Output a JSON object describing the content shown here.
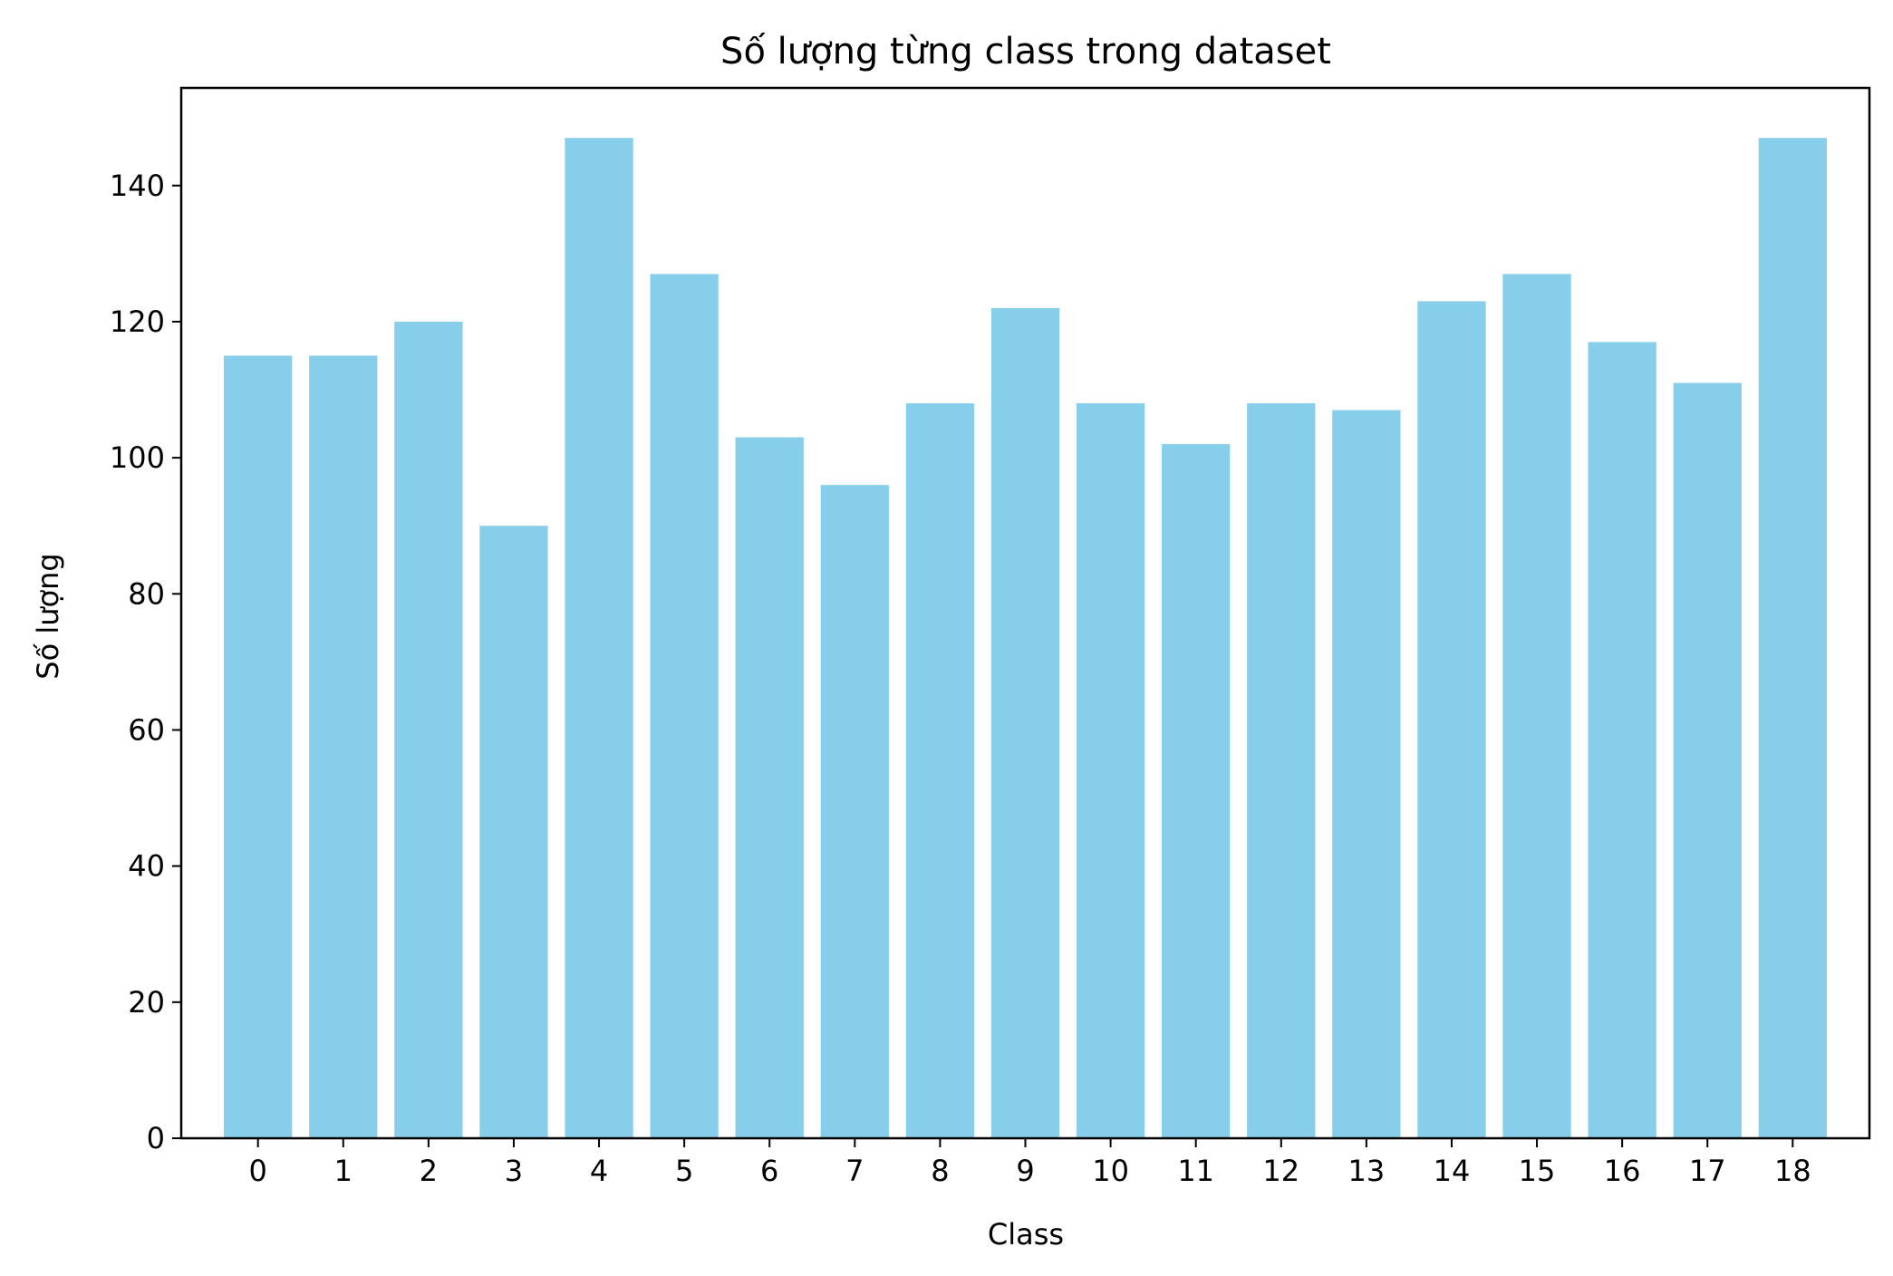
{
  "chart_data": {
    "type": "bar",
    "title": "Số lượng từng class trong dataset",
    "xlabel": "Class",
    "ylabel": "Số lượng",
    "categories": [
      "0",
      "1",
      "2",
      "3",
      "4",
      "5",
      "6",
      "7",
      "8",
      "9",
      "10",
      "11",
      "12",
      "13",
      "14",
      "15",
      "16",
      "17",
      "18"
    ],
    "values": [
      115,
      115,
      120,
      90,
      147,
      127,
      103,
      96,
      108,
      122,
      108,
      102,
      108,
      107,
      123,
      127,
      117,
      111,
      147
    ],
    "ylim": [
      0,
      154.35
    ],
    "yticks": [
      0,
      20,
      40,
      60,
      80,
      100,
      120,
      140
    ],
    "bar_color": "#87ceeb",
    "grid": false,
    "legend": "none"
  }
}
